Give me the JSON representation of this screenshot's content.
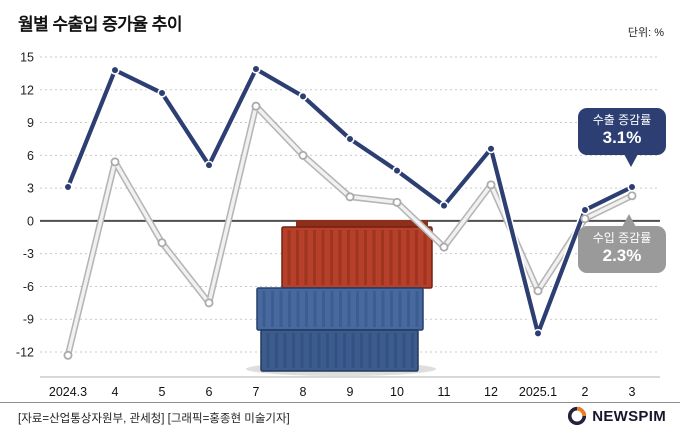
{
  "header": {
    "unit_label": "단위: %"
  },
  "chart_data": {
    "type": "line",
    "title": "월별 수출입 증가율 추이",
    "unit": "%",
    "categories": [
      "2024.3",
      "4",
      "5",
      "6",
      "7",
      "8",
      "9",
      "10",
      "11",
      "12",
      "2025.1",
      "2",
      "3"
    ],
    "series": [
      {
        "name": "수출 증감률",
        "color": "#2c3e72",
        "values": [
          3.1,
          13.8,
          11.7,
          5.1,
          13.9,
          11.4,
          7.5,
          4.6,
          1.4,
          6.6,
          -10.3,
          1.0,
          3.1
        ]
      },
      {
        "name": "수입 증감률",
        "color": "#c2c2c2",
        "values": [
          -12.3,
          5.4,
          -2.0,
          -7.5,
          10.5,
          6.0,
          2.2,
          1.7,
          -2.4,
          3.3,
          -6.4,
          0.2,
          2.3
        ]
      }
    ],
    "ylim": [
      -12,
      15
    ],
    "ytick_step": 3,
    "yticks": [
      15,
      12,
      9,
      6,
      3,
      0,
      -3,
      -6,
      -9,
      -12
    ],
    "grid": true,
    "zero_line": true,
    "legend_position": "annotated-badges"
  },
  "badges": {
    "export": {
      "label": "수출 증감률",
      "value": "3.1%",
      "color": "#2c3e72"
    },
    "import": {
      "label": "수입 증감률",
      "value": "2.3%",
      "color": "#9a9a9a"
    }
  },
  "footer": {
    "source_credit": "[자료=산업통상자원부, 관세청] [그래픽=홍종현 미술기자]",
    "logo": "NEWSPIM"
  }
}
